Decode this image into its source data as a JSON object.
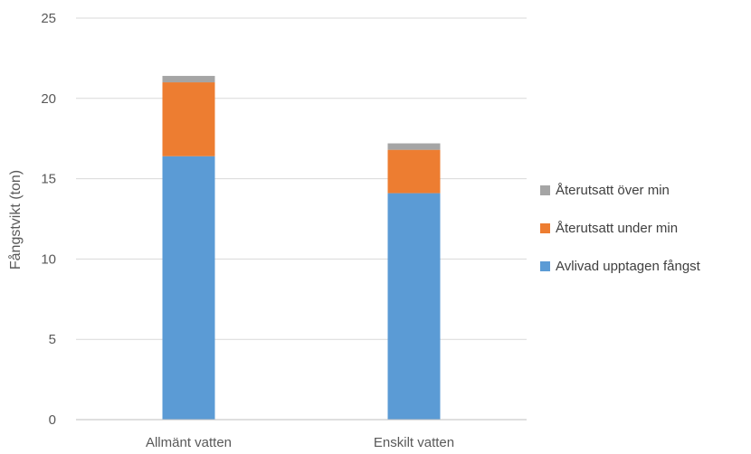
{
  "chart_data": {
    "type": "bar",
    "stacked": true,
    "categories": [
      "Allmänt vatten",
      "Enskilt vatten"
    ],
    "series": [
      {
        "name": "Avlivad upptagen fångst",
        "color": "#5B9BD5",
        "values": [
          16.4,
          14.1
        ]
      },
      {
        "name": "Återutsatt under min",
        "color": "#ED7D31",
        "values": [
          4.6,
          2.7
        ]
      },
      {
        "name": "Återutsatt över min",
        "color": "#A5A5A5",
        "values": [
          0.4,
          0.4
        ]
      }
    ],
    "title": "",
    "xlabel": "",
    "ylabel": "Fångstvikt (ton)",
    "ylim": [
      0,
      25
    ],
    "yticks": [
      "0",
      "5",
      "10",
      "15",
      "20",
      "25"
    ],
    "grid": true,
    "legend_position": "right",
    "legend_order": [
      "Återutsatt över min",
      "Återutsatt under min",
      "Avlivad upptagen fångst"
    ]
  }
}
